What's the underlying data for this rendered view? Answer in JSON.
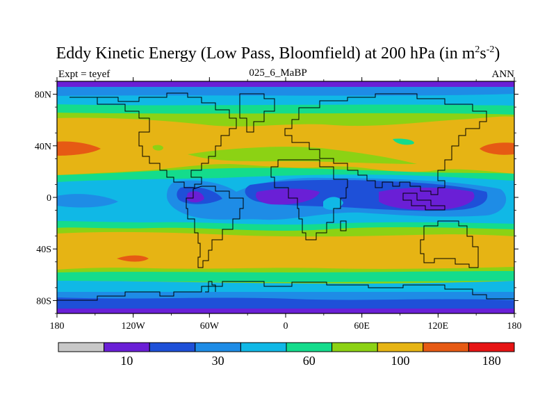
{
  "title": {
    "main": "Eddy Kinetic Energy (Low Pass, Bloomfield) at 200 hPa (in m",
    "sup1": "2",
    "mid": "s",
    "sup2": "-2",
    "end": ")"
  },
  "left_label": "Expt = teyef",
  "center_label": "025_6_MaBP",
  "right_label": "ANN",
  "lat_ticks": [
    "80N",
    "40N",
    "0",
    "40S",
    "80S"
  ],
  "lon_ticks": [
    "180",
    "120W",
    "60W",
    "0",
    "60E",
    "120E",
    "180"
  ],
  "colorbar": {
    "colors": [
      "#c8c8c8",
      "#6a1fd6",
      "#1e50d8",
      "#1e8ce6",
      "#10b8e6",
      "#14dc8c",
      "#8cd214",
      "#e6b414",
      "#e65a14",
      "#e61414"
    ],
    "labels": [
      {
        "text": "10",
        "boundary": 2
      },
      {
        "text": "30",
        "boundary": 4
      },
      {
        "text": "60",
        "boundary": 6
      },
      {
        "text": "100",
        "boundary": 8
      },
      {
        "text": "180",
        "boundary": 10
      }
    ]
  }
}
